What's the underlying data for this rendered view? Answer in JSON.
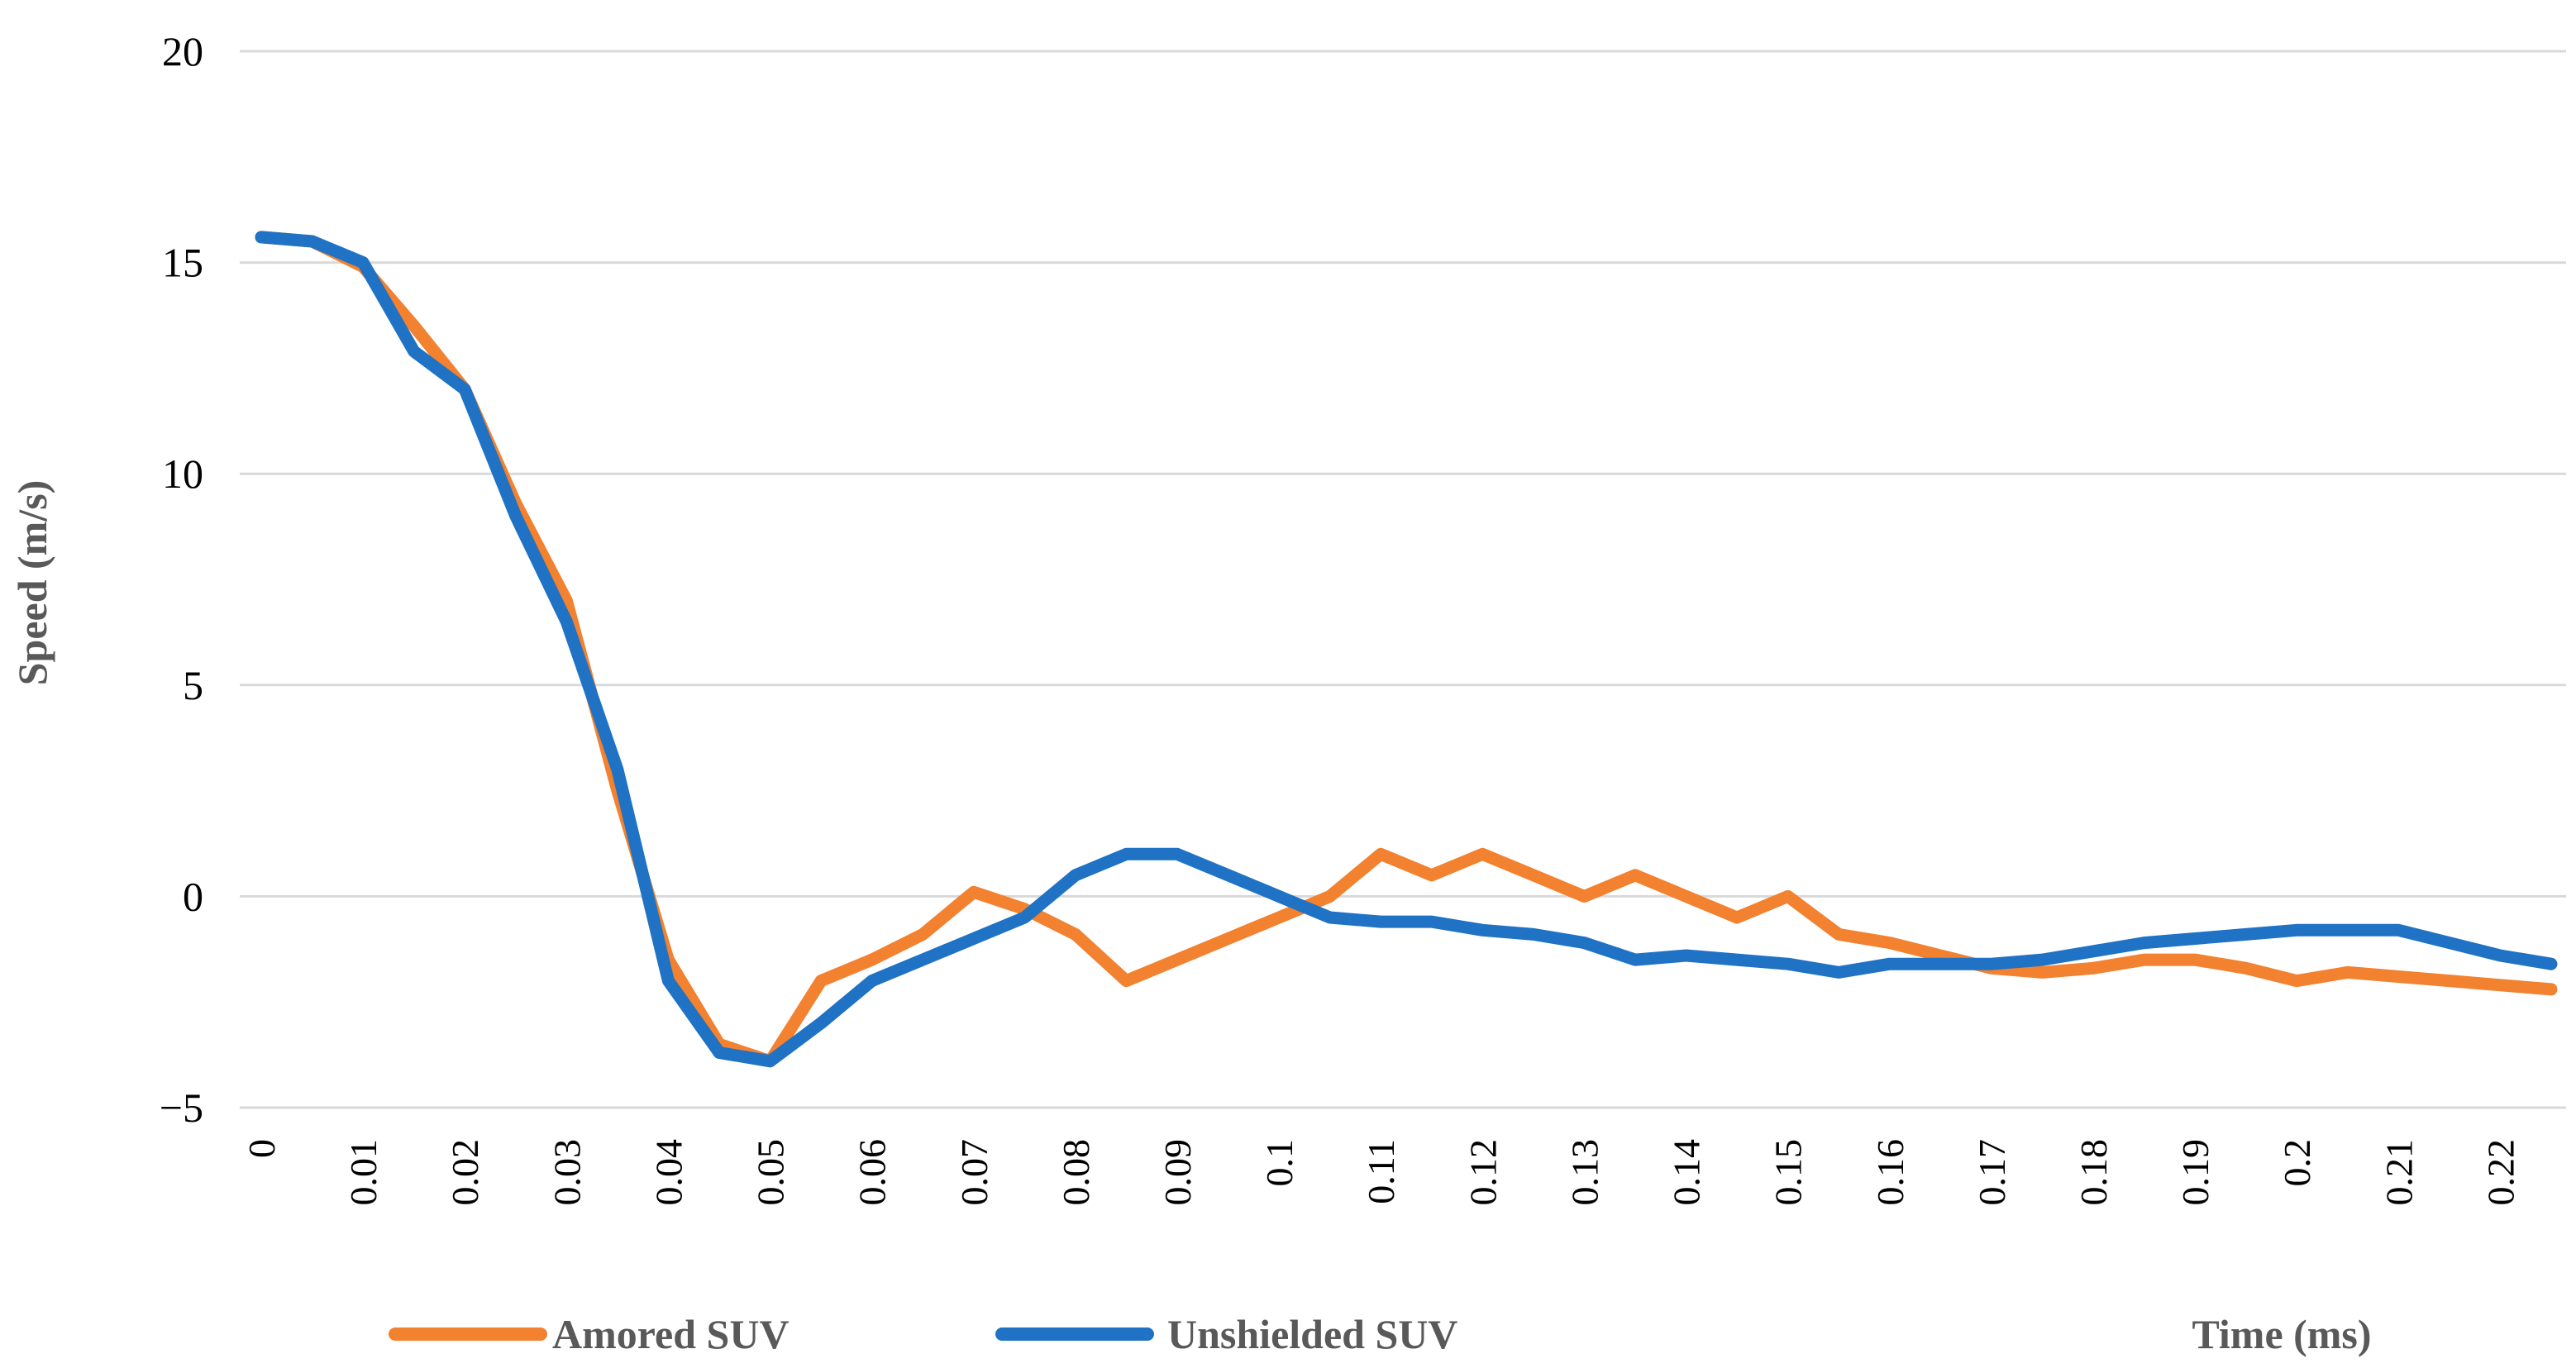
{
  "chart_data": {
    "type": "line",
    "title": "",
    "xlabel": "Time (ms)",
    "ylabel": "Speed (m/s)",
    "ylim": [
      -5,
      20
    ],
    "yticks": [
      "−5",
      "0",
      "5",
      "10",
      "15",
      "20"
    ],
    "ytick_values": [
      -5,
      0,
      5,
      10,
      15,
      20
    ],
    "xlim": [
      0,
      0.225
    ],
    "xticks": [
      "0",
      "0.01",
      "0.02",
      "0.03",
      "0.04",
      "0.05",
      "0.06",
      "0.07",
      "0.08",
      "0.09",
      "0.1",
      "0.11",
      "0.12",
      "0.13",
      "0.14",
      "0.15",
      "0.16",
      "0.17",
      "0.18",
      "0.19",
      "0.2",
      "0.21",
      "0.22"
    ],
    "xtick_values": [
      0,
      0.01,
      0.02,
      0.03,
      0.04,
      0.05,
      0.06,
      0.07,
      0.08,
      0.09,
      0.1,
      0.11,
      0.12,
      0.13,
      0.14,
      0.15,
      0.16,
      0.17,
      0.18,
      0.19,
      0.2,
      0.21,
      0.22
    ],
    "grid": true,
    "legend_position": "bottom-left",
    "x": [
      0,
      0.005,
      0.01,
      0.015,
      0.02,
      0.025,
      0.03,
      0.035,
      0.04,
      0.045,
      0.05,
      0.055,
      0.06,
      0.065,
      0.07,
      0.075,
      0.08,
      0.085,
      0.09,
      0.095,
      0.1,
      0.105,
      0.11,
      0.115,
      0.12,
      0.125,
      0.13,
      0.135,
      0.14,
      0.145,
      0.15,
      0.155,
      0.16,
      0.165,
      0.17,
      0.175,
      0.18,
      0.185,
      0.19,
      0.195,
      0.2,
      0.205,
      0.21,
      0.215,
      0.22,
      0.225
    ],
    "series": [
      {
        "name": "Amored SUV",
        "color": "#f28130",
        "values": [
          15.6,
          15.5,
          14.9,
          13.5,
          12.0,
          9.3,
          7.0,
          2.5,
          -1.5,
          -3.5,
          -3.9,
          -2.0,
          -1.5,
          -0.9,
          0.1,
          -0.3,
          -0.9,
          -2.0,
          -1.5,
          -1.0,
          -0.5,
          0.0,
          1.0,
          0.5,
          1.0,
          0.5,
          0.0,
          0.5,
          0.0,
          -0.5,
          0.0,
          -0.9,
          -1.1,
          -1.4,
          -1.7,
          -1.8,
          -1.7,
          -1.5,
          -1.5,
          -1.7,
          -2.0,
          -1.8,
          -1.9,
          -2.0,
          -2.1,
          -2.2
        ]
      },
      {
        "name": "Unshielded SUV",
        "color": "#1f72c4",
        "values": [
          15.6,
          15.5,
          15.0,
          12.9,
          12.0,
          9.0,
          6.5,
          3.0,
          -2.0,
          -3.7,
          -3.9,
          -3.0,
          -2.0,
          -1.5,
          -1.0,
          -0.5,
          0.5,
          1.0,
          1.0,
          0.5,
          0.0,
          -0.5,
          -0.6,
          -0.6,
          -0.8,
          -0.9,
          -1.1,
          -1.5,
          -1.4,
          -1.5,
          -1.6,
          -1.8,
          -1.6,
          -1.6,
          -1.6,
          -1.5,
          -1.3,
          -1.1,
          -1.0,
          -0.9,
          -0.8,
          -0.8,
          -0.8,
          -1.1,
          -1.4,
          -1.6
        ]
      }
    ]
  }
}
